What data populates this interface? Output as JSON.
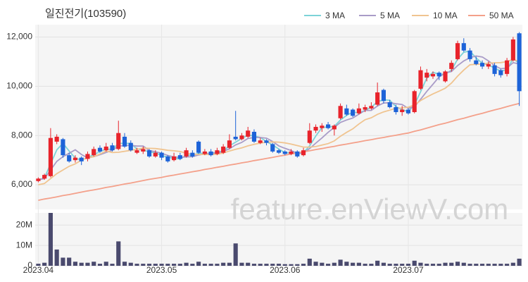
{
  "chart_data": {
    "type": "candlestick",
    "title": "일진전기(103590)",
    "watermark": "feature.enViewV.com",
    "categories": [
      "2023.04",
      null,
      null,
      null,
      null,
      null,
      null,
      null,
      null,
      null,
      null,
      null,
      null,
      null,
      null,
      null,
      null,
      null,
      null,
      null,
      "2023.05",
      null,
      null,
      null,
      null,
      null,
      null,
      null,
      null,
      null,
      null,
      null,
      null,
      null,
      null,
      null,
      null,
      null,
      null,
      null,
      "2023.06",
      null,
      null,
      null,
      null,
      null,
      null,
      null,
      null,
      null,
      null,
      null,
      null,
      null,
      null,
      null,
      null,
      null,
      null,
      null,
      "2023.07",
      null,
      null,
      null,
      null,
      null,
      null,
      null,
      null,
      null,
      null,
      null,
      null,
      null,
      null,
      null,
      null,
      null,
      null
    ],
    "open": [
      6150,
      6250,
      6350,
      7750,
      7850,
      7200,
      7000,
      7100,
      7050,
      7200,
      7500,
      7400,
      7600,
      7450,
      7950,
      7700,
      7300,
      7350,
      7400,
      7150,
      7300,
      7150,
      7000,
      7200,
      7150,
      7300,
      7750,
      7250,
      7350,
      7250,
      7300,
      7500,
      7950,
      7850,
      7950,
      8150,
      7700,
      7800,
      7650,
      7400,
      7350,
      7250,
      7350,
      7200,
      7700,
      8200,
      8300,
      8450,
      8250,
      8700,
      9100,
      9050,
      8900,
      9050,
      9100,
      9250,
      9850,
      9350,
      9150,
      8950,
      9050,
      8950,
      9900,
      10350,
      10400,
      10550,
      10200,
      10700,
      11100,
      11750,
      11450,
      11050,
      10950,
      10800,
      10850,
      10650,
      10500,
      11050,
      12150
    ],
    "high": [
      6300,
      6450,
      8300,
      8050,
      7900,
      7300,
      7200,
      7150,
      7350,
      7550,
      7600,
      7700,
      7700,
      8600,
      8100,
      7800,
      7500,
      7550,
      7450,
      7400,
      7350,
      7200,
      7300,
      7300,
      7500,
      7400,
      7800,
      7450,
      7450,
      7500,
      7650,
      8050,
      9000,
      8100,
      8350,
      8250,
      7900,
      7850,
      7700,
      7450,
      7400,
      7450,
      7400,
      7500,
      8500,
      8450,
      8500,
      8550,
      8450,
      9300,
      9250,
      9100,
      9300,
      9250,
      9350,
      10150,
      9900,
      9450,
      9250,
      9200,
      9100,
      9850,
      10800,
      10700,
      10600,
      10600,
      10650,
      11050,
      11850,
      11950,
      11550,
      11200,
      11050,
      11000,
      10950,
      10700,
      11150,
      12000,
      12200
    ],
    "low": [
      6100,
      6200,
      6300,
      7650,
      7100,
      6900,
      6900,
      6800,
      6950,
      7150,
      7300,
      7350,
      7350,
      7400,
      7500,
      7350,
      7250,
      7250,
      7100,
      7100,
      7000,
      6900,
      6950,
      7000,
      7100,
      7100,
      7250,
      7200,
      7150,
      7200,
      7250,
      7450,
      7800,
      7800,
      7900,
      7700,
      7650,
      7600,
      7300,
      7250,
      7200,
      7200,
      7100,
      7150,
      7650,
      8100,
      8150,
      8250,
      8000,
      8650,
      8800,
      8750,
      8850,
      8950,
      9050,
      9200,
      9300,
      9100,
      8850,
      8800,
      8850,
      8900,
      9850,
      10200,
      10300,
      10250,
      10150,
      10600,
      11050,
      11400,
      11000,
      10850,
      10700,
      10700,
      10400,
      10350,
      10400,
      11000,
      9200
    ],
    "close": [
      6250,
      6400,
      7900,
      7950,
      7200,
      6950,
      7100,
      6950,
      7250,
      7450,
      7350,
      7550,
      7400,
      8100,
      7550,
      7400,
      7400,
      7450,
      7150,
      7300,
      7100,
      6950,
      7150,
      7050,
      7400,
      7150,
      7300,
      7350,
      7200,
      7400,
      7550,
      7800,
      7850,
      8000,
      8200,
      7750,
      7800,
      7700,
      7350,
      7300,
      7250,
      7350,
      7150,
      7400,
      8200,
      8350,
      8400,
      8300,
      8400,
      9200,
      8850,
      8800,
      9100,
      9150,
      9200,
      9750,
      9400,
      9150,
      8950,
      9050,
      8900,
      9800,
      10650,
      10550,
      10500,
      10400,
      10600,
      10950,
      11750,
      11450,
      11100,
      10900,
      10800,
      10900,
      10500,
      10450,
      11050,
      11900,
      9800
    ],
    "volume": [
      1000000,
      1500000,
      26000000,
      8000000,
      4000000,
      4000000,
      2000000,
      1500000,
      1500000,
      2000000,
      1000000,
      2000000,
      1000000,
      12000000,
      2000000,
      1500000,
      1000000,
      1000000,
      1000000,
      1000000,
      1000000,
      1000000,
      1000000,
      1000000,
      1500000,
      1000000,
      2000000,
      1000000,
      1000000,
      1000000,
      1500000,
      1500000,
      11000000,
      1500000,
      1500000,
      1000000,
      1000000,
      1000000,
      1000000,
      1000000,
      800000,
      800000,
      800000,
      1000000,
      3500000,
      2000000,
      1500000,
      1000000,
      1500000,
      3000000,
      2000000,
      1500000,
      1500000,
      1000000,
      1000000,
      2500000,
      1500000,
      1000000,
      1000000,
      1000000,
      1000000,
      2500000,
      1500000,
      1000000,
      1000000,
      1000000,
      1500000,
      1500000,
      2000000,
      1500000,
      1000000,
      1000000,
      1000000,
      1000000,
      1000000,
      1000000,
      1000000,
      1500000,
      3500000
    ],
    "up_color": "#e8232b",
    "down_color": "#1d63d8",
    "volume_color": "#4a4a6e",
    "series": [
      {
        "name": "3 MA",
        "color": "#7dd3d8",
        "values": [
          6200,
          6280,
          6850,
          7420,
          7680,
          7370,
          7080,
          7000,
          7100,
          7220,
          7350,
          7450,
          7430,
          7680,
          7680,
          7680,
          7450,
          7420,
          7330,
          7300,
          7180,
          7120,
          7070,
          7050,
          7200,
          7200,
          7280,
          7270,
          7280,
          7320,
          7380,
          7580,
          7730,
          7880,
          8020,
          7980,
          7920,
          7750,
          7620,
          7450,
          7300,
          7300,
          7250,
          7300,
          7580,
          7980,
          8320,
          8350,
          8370,
          8630,
          8820,
          8950,
          8920,
          9020,
          9150,
          9370,
          9450,
          9430,
          9170,
          9050,
          8970,
          9250,
          9780,
          10330,
          10570,
          10480,
          10500,
          10650,
          11100,
          11380,
          11430,
          11150,
          10930,
          10870,
          10730,
          10620,
          10670,
          11130,
          10920
        ]
      },
      {
        "name": "5 MA",
        "color": "#a99cc8",
        "values": [
          6200,
          6250,
          6600,
          6950,
          7140,
          7280,
          7420,
          7230,
          7090,
          7140,
          7220,
          7310,
          7400,
          7570,
          7590,
          7600,
          7570,
          7570,
          7390,
          7340,
          7280,
          7190,
          7130,
          7110,
          7130,
          7140,
          7210,
          7250,
          7280,
          7280,
          7360,
          7460,
          7620,
          7720,
          7880,
          7920,
          7920,
          7890,
          7760,
          7580,
          7480,
          7390,
          7270,
          7290,
          7470,
          7690,
          7900,
          8130,
          8330,
          8530,
          8630,
          8710,
          8870,
          9020,
          9020,
          9200,
          9320,
          9330,
          9290,
          9260,
          9100,
          9170,
          9470,
          9790,
          10080,
          10380,
          10540,
          10600,
          10840,
          11030,
          11160,
          11230,
          11190,
          11030,
          10840,
          10710,
          10740,
          10960,
          10900
        ]
      },
      {
        "name": "10 MA",
        "color": "#f0c490",
        "values": [
          6000,
          6050,
          6250,
          6450,
          6600,
          6750,
          6850,
          7000,
          7100,
          7140,
          7250,
          7370,
          7310,
          7320,
          7360,
          7400,
          7440,
          7490,
          7480,
          7470,
          7440,
          7400,
          7380,
          7350,
          7280,
          7240,
          7230,
          7230,
          7230,
          7240,
          7290,
          7370,
          7440,
          7500,
          7580,
          7640,
          7690,
          7730,
          7740,
          7730,
          7700,
          7650,
          7590,
          7530,
          7530,
          7550,
          7610,
          7670,
          7780,
          7970,
          8130,
          8270,
          8470,
          8640,
          8720,
          8860,
          8960,
          9030,
          9110,
          9120,
          9150,
          9240,
          9420,
          9560,
          9690,
          9800,
          9920,
          10130,
          10410,
          10660,
          10870,
          10890,
          10900,
          10940,
          10950,
          10960,
          11000,
          11090,
          11000
        ]
      },
      {
        "name": "50 MA",
        "color": "#f4a08a",
        "values": [
          5370,
          5420,
          5460,
          5510,
          5560,
          5600,
          5650,
          5700,
          5750,
          5790,
          5840,
          5890,
          5930,
          5980,
          6030,
          6070,
          6120,
          6170,
          6220,
          6260,
          6300,
          6350,
          6390,
          6440,
          6480,
          6530,
          6570,
          6620,
          6660,
          6710,
          6750,
          6800,
          6840,
          6890,
          6930,
          6980,
          7020,
          7070,
          7110,
          7160,
          7200,
          7250,
          7290,
          7340,
          7380,
          7430,
          7470,
          7520,
          7560,
          7610,
          7650,
          7700,
          7740,
          7790,
          7830,
          7880,
          7920,
          7970,
          8010,
          8060,
          8100,
          8170,
          8230,
          8300,
          8370,
          8440,
          8500,
          8570,
          8640,
          8700,
          8770,
          8840,
          8900,
          8970,
          9040,
          9100,
          9170,
          9240,
          9300
        ]
      }
    ],
    "ylim": [
      5000,
      12500
    ],
    "yticks": [
      {
        "value": 6000,
        "label": "6,000"
      },
      {
        "value": 8000,
        "label": "8,000"
      },
      {
        "value": 10000,
        "label": "10,000"
      },
      {
        "value": 12000,
        "label": "12,000"
      }
    ],
    "volume_ylim": [
      0,
      26000000
    ],
    "volume_ticks": [
      0,
      {
        "value": 10000000,
        "label": "10M"
      },
      {
        "value": 20000000,
        "label": "20M"
      }
    ],
    "grid": true
  }
}
